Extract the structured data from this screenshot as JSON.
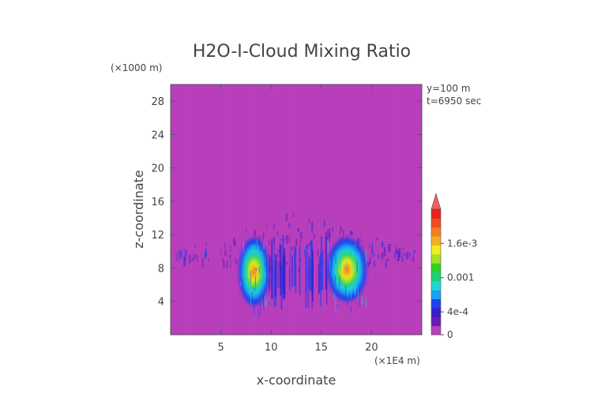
{
  "chart_data": {
    "type": "heatmap",
    "title": "H2O-I-Cloud Mixing Ratio",
    "xlabel": "x-coordinate",
    "ylabel": "z-coordinate",
    "x_units": "(×1E4 m)",
    "y_units": "(×1000 m)",
    "annotations": [
      "y=100 m",
      "t=6950 sec"
    ],
    "xlim": [
      0,
      25
    ],
    "ylim": [
      0,
      30
    ],
    "x_ticks": [
      5,
      10,
      15,
      20
    ],
    "y_ticks": [
      4,
      8,
      12,
      16,
      20,
      24,
      28
    ],
    "grid": false,
    "background_color": "#b93fbd",
    "colorbar": {
      "placement": "right",
      "min": 0,
      "max": 0.0022,
      "labels": [
        {
          "value": 0,
          "text": "0"
        },
        {
          "value": 0.0004,
          "text": "4e-4"
        },
        {
          "value": 0.001,
          "text": "0.001"
        },
        {
          "value": 0.0016,
          "text": "1.6e-3"
        }
      ],
      "colors": [
        "#b93fbd",
        "#6a1fb0",
        "#3a1ec8",
        "#1f3ff0",
        "#1aa0f0",
        "#22d6d6",
        "#1fd07a",
        "#33d02a",
        "#a6e020",
        "#f0f020",
        "#f0b020",
        "#f08020",
        "#f04a20",
        "#e82020",
        "#f06060"
      ],
      "extend": "max"
    },
    "features": [
      {
        "x_range": [
          6.8,
          9.8
        ],
        "z_range": [
          3,
          11.5
        ],
        "peak": 0.0016,
        "description_label": ""
      },
      {
        "x_range": [
          15.6,
          19.5
        ],
        "z_range": [
          3.5,
          11.5
        ],
        "peak": 0.0016,
        "description_label": ""
      },
      {
        "x_range": [
          0.5,
          24.5
        ],
        "z_range": [
          8,
          15
        ],
        "peak": 0.0003,
        "description_label": ""
      }
    ]
  }
}
